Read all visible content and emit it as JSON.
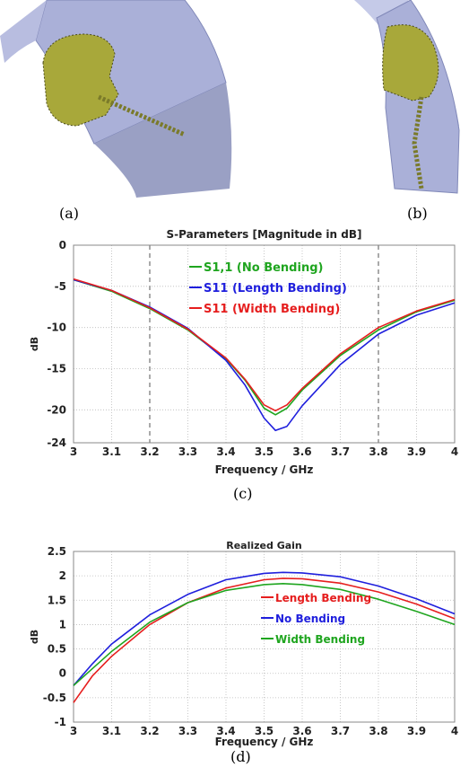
{
  "captions": {
    "a": "(a)",
    "b": "(b)",
    "c": "(c)",
    "d": "(d)"
  },
  "colors": {
    "green": "#1fa51f",
    "blue": "#1f1fdd",
    "red": "#e61e1e",
    "substrate": "#aab0d8",
    "substrate_dark": "#9aa0c4",
    "patch": "#a8a83a"
  },
  "chart_data": [
    {
      "type": "line",
      "title": "S-Parameters [Magnitude in dB]",
      "xlabel": "Frequency / GHz",
      "ylabel": "dB",
      "xlim": [
        3,
        4
      ],
      "ylim": [
        -24,
        0
      ],
      "xticks": [
        "3",
        "3.1",
        "3.2",
        "3.3",
        "3.4",
        "3.5",
        "3.6",
        "3.7",
        "3.8",
        "3.9",
        "4"
      ],
      "yticks": [
        "0",
        "-5",
        "-10",
        "-15",
        "-20",
        "-24"
      ],
      "grid": true,
      "dashed_x": [
        3.2,
        3.8
      ],
      "legend_position": "top-center",
      "x": [
        3.0,
        3.1,
        3.2,
        3.3,
        3.4,
        3.45,
        3.5,
        3.53,
        3.56,
        3.6,
        3.7,
        3.8,
        3.9,
        4.0
      ],
      "series": [
        {
          "name": "S1,1 (No Bending)",
          "color": "#1fa51f",
          "values": [
            -4.2,
            -5.6,
            -7.7,
            -10.3,
            -13.8,
            -16.4,
            -19.8,
            -20.6,
            -19.8,
            -17.6,
            -13.4,
            -10.3,
            -8.1,
            -6.7
          ]
        },
        {
          "name": "S11 (Length Bending)",
          "color": "#1f1fdd",
          "values": [
            -4.2,
            -5.5,
            -7.5,
            -10.1,
            -14.0,
            -17.0,
            -21.0,
            -22.5,
            -22.0,
            -19.5,
            -14.5,
            -10.8,
            -8.5,
            -7.0
          ]
        },
        {
          "name": "S11 (Width Bending)",
          "color": "#e61e1e",
          "values": [
            -4.1,
            -5.5,
            -7.6,
            -10.2,
            -13.7,
            -16.3,
            -19.4,
            -20.1,
            -19.4,
            -17.4,
            -13.2,
            -10.0,
            -8.0,
            -6.6
          ]
        }
      ]
    },
    {
      "type": "line",
      "title": "Realized Gain",
      "xlabel": "Frequency / GHz",
      "ylabel": "dB",
      "xlim": [
        3,
        4
      ],
      "ylim": [
        -1,
        2.5
      ],
      "xticks": [
        "3",
        "3.1",
        "3.2",
        "3.3",
        "3.4",
        "3.5",
        "3.6",
        "3.7",
        "3.8",
        "3.9",
        "4"
      ],
      "yticks": [
        "2.5",
        "2",
        "1.5",
        "1",
        "0.5",
        "0",
        "-0.5",
        "-1"
      ],
      "grid": true,
      "legend_position": "bottom-right",
      "x": [
        3.0,
        3.05,
        3.1,
        3.2,
        3.3,
        3.4,
        3.5,
        3.55,
        3.6,
        3.7,
        3.8,
        3.9,
        4.0
      ],
      "series": [
        {
          "name": "Length Bending",
          "color": "#e61e1e",
          "values": [
            -0.6,
            -0.05,
            0.35,
            1.0,
            1.45,
            1.75,
            1.92,
            1.95,
            1.94,
            1.85,
            1.67,
            1.42,
            1.12
          ]
        },
        {
          "name": "No Bending",
          "color": "#1f1fdd",
          "values": [
            -0.25,
            0.2,
            0.6,
            1.2,
            1.62,
            1.92,
            2.05,
            2.07,
            2.06,
            1.98,
            1.79,
            1.53,
            1.22
          ]
        },
        {
          "name": "Width Bending",
          "color": "#1fa51f",
          "values": [
            -0.25,
            0.1,
            0.45,
            1.05,
            1.45,
            1.7,
            1.82,
            1.84,
            1.82,
            1.72,
            1.52,
            1.27,
            1.0
          ]
        }
      ]
    }
  ]
}
